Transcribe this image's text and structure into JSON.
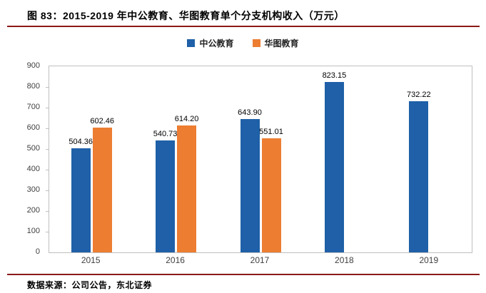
{
  "title": "图 83：2015-2019 年中公教育、华图教育单个分支机构收入（万元）",
  "source": "数据来源：公司公告，东北证券",
  "colors": {
    "rule": "#8B1A17",
    "series1": "#1F60A8",
    "series2": "#ED7D31"
  },
  "chart_data": {
    "type": "bar",
    "title": "2015-2019 年中公教育、华图教育单个分支机构收入（万元）",
    "categories": [
      "2015",
      "2016",
      "2017",
      "2018",
      "2019"
    ],
    "series": [
      {
        "name": "中公教育",
        "key": "zhonggong",
        "color": "#1F60A8",
        "values": [
          504.36,
          540.73,
          643.9,
          823.15,
          732.22
        ],
        "labels": [
          "504.36",
          "540.73",
          "643.90",
          "823.15",
          "732.22"
        ]
      },
      {
        "name": "华图教育",
        "key": "huatu",
        "color": "#ED7D31",
        "values": [
          602.46,
          614.2,
          551.01,
          null,
          null
        ],
        "labels": [
          "602.46",
          "614.20",
          "551.01",
          null,
          null
        ]
      }
    ],
    "xlabel": "",
    "ylabel": "",
    "ylim": [
      0,
      900
    ],
    "ytick_step": 100,
    "grid": false,
    "legend_position": "top"
  }
}
